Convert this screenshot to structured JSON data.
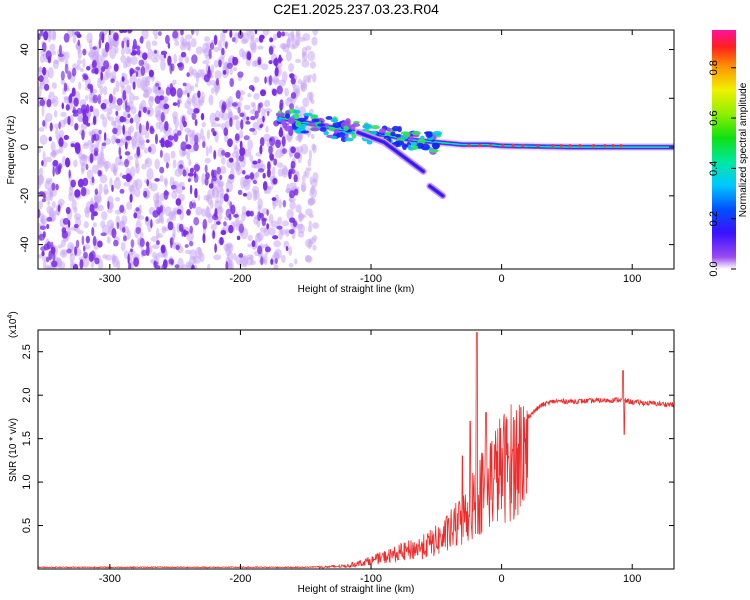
{
  "title": "C2E1.2025.237.03.23.R04",
  "colors": {
    "snr_line": "#ee2a2a",
    "frame": "#000000",
    "spectrogram_noise": "#7a2ae8",
    "spectrogram_noise_light": "#c9a5f5"
  },
  "chart_data": [
    {
      "type": "heatmap",
      "name": "spectrogram",
      "xlabel": "Height of straight line (km)",
      "ylabel": "Frequency (Hz)",
      "xlim": [
        -355,
        132
      ],
      "ylim": [
        -50,
        48
      ],
      "xticks": [
        -300,
        -200,
        -100,
        0,
        100
      ],
      "xtick_labels": [
        "-300",
        "-200",
        "-100",
        "0",
        "100"
      ],
      "yticks": [
        -40,
        -20,
        0,
        20,
        40
      ],
      "ytick_labels": [
        "-40",
        "-20",
        "0",
        "20",
        "40"
      ],
      "colorbar": {
        "label": "Normalized spectral amplitude",
        "range": [
          0,
          0.95
        ],
        "ticks": [
          0.0,
          0.2,
          0.4,
          0.6,
          0.8
        ],
        "tick_labels": [
          "0.0",
          "0.2",
          "0.4",
          "0.6",
          "0.8"
        ],
        "colormap": "rainbow"
      },
      "noise_region_x": [
        -355,
        -150
      ],
      "signal_track": [
        {
          "x": -170,
          "y": 12
        },
        {
          "x": -150,
          "y": 10
        },
        {
          "x": -130,
          "y": 8
        },
        {
          "x": -110,
          "y": 6
        },
        {
          "x": -90,
          "y": 5
        },
        {
          "x": -70,
          "y": 3
        },
        {
          "x": -50,
          "y": 2
        },
        {
          "x": -30,
          "y": 1
        },
        {
          "x": -10,
          "y": 1
        },
        {
          "x": 0,
          "y": 0.5
        },
        {
          "x": 50,
          "y": 0
        },
        {
          "x": 100,
          "y": 0
        },
        {
          "x": 132,
          "y": 0
        }
      ],
      "secondary_track": [
        {
          "x": -110,
          "y": 6
        },
        {
          "x": -90,
          "y": 2
        },
        {
          "x": -75,
          "y": -4
        },
        {
          "x": -60,
          "y": -10
        }
      ],
      "tertiary_track": [
        {
          "x": -55,
          "y": -16
        },
        {
          "x": -45,
          "y": -20
        }
      ]
    },
    {
      "type": "line",
      "name": "snr",
      "xlabel": "Height of straight line (km)",
      "ylabel": "SNR (10 * v/v)",
      "y_multiplier": "(x10",
      "y_multiplier_exp": "4",
      "y_multiplier_close": ")",
      "xlim": [
        -355,
        132
      ],
      "ylim": [
        0,
        2.75
      ],
      "xticks": [
        -300,
        -200,
        -100,
        0,
        100
      ],
      "xtick_labels": [
        "-300",
        "-200",
        "-100",
        "0",
        "100"
      ],
      "yticks": [
        0.5,
        1.0,
        1.5,
        2.0,
        2.5
      ],
      "ytick_labels": [
        "0.5",
        "1.0",
        "1.5",
        "2.0",
        "2.5"
      ],
      "series": [
        {
          "name": "SNR",
          "envelope": [
            {
              "x": -355,
              "y": 0.02
            },
            {
              "x": -150,
              "y": 0.02
            },
            {
              "x": -120,
              "y": 0.04
            },
            {
              "x": -100,
              "y": 0.12
            },
            {
              "x": -80,
              "y": 0.22
            },
            {
              "x": -60,
              "y": 0.32
            },
            {
              "x": -45,
              "y": 0.45
            },
            {
              "x": -30,
              "y": 0.7
            },
            {
              "x": -20,
              "y": 1.0
            },
            {
              "x": -10,
              "y": 1.25
            },
            {
              "x": 0,
              "y": 1.45
            },
            {
              "x": 10,
              "y": 1.58
            },
            {
              "x": 20,
              "y": 1.75
            },
            {
              "x": 30,
              "y": 1.88
            },
            {
              "x": 40,
              "y": 1.93
            },
            {
              "x": 60,
              "y": 1.93
            },
            {
              "x": 80,
              "y": 1.94
            },
            {
              "x": 90,
              "y": 1.95
            },
            {
              "x": 100,
              "y": 1.92
            },
            {
              "x": 132,
              "y": 1.89
            }
          ],
          "peaks": [
            {
              "x": -19,
              "y": 2.72
            },
            {
              "x": -24,
              "y": 1.7
            },
            {
              "x": -30,
              "y": 1.3
            },
            {
              "x": -12,
              "y": 1.8
            },
            {
              "x": 93,
              "y": 2.28
            },
            {
              "x": 94,
              "y": 1.55
            }
          ]
        }
      ]
    }
  ]
}
